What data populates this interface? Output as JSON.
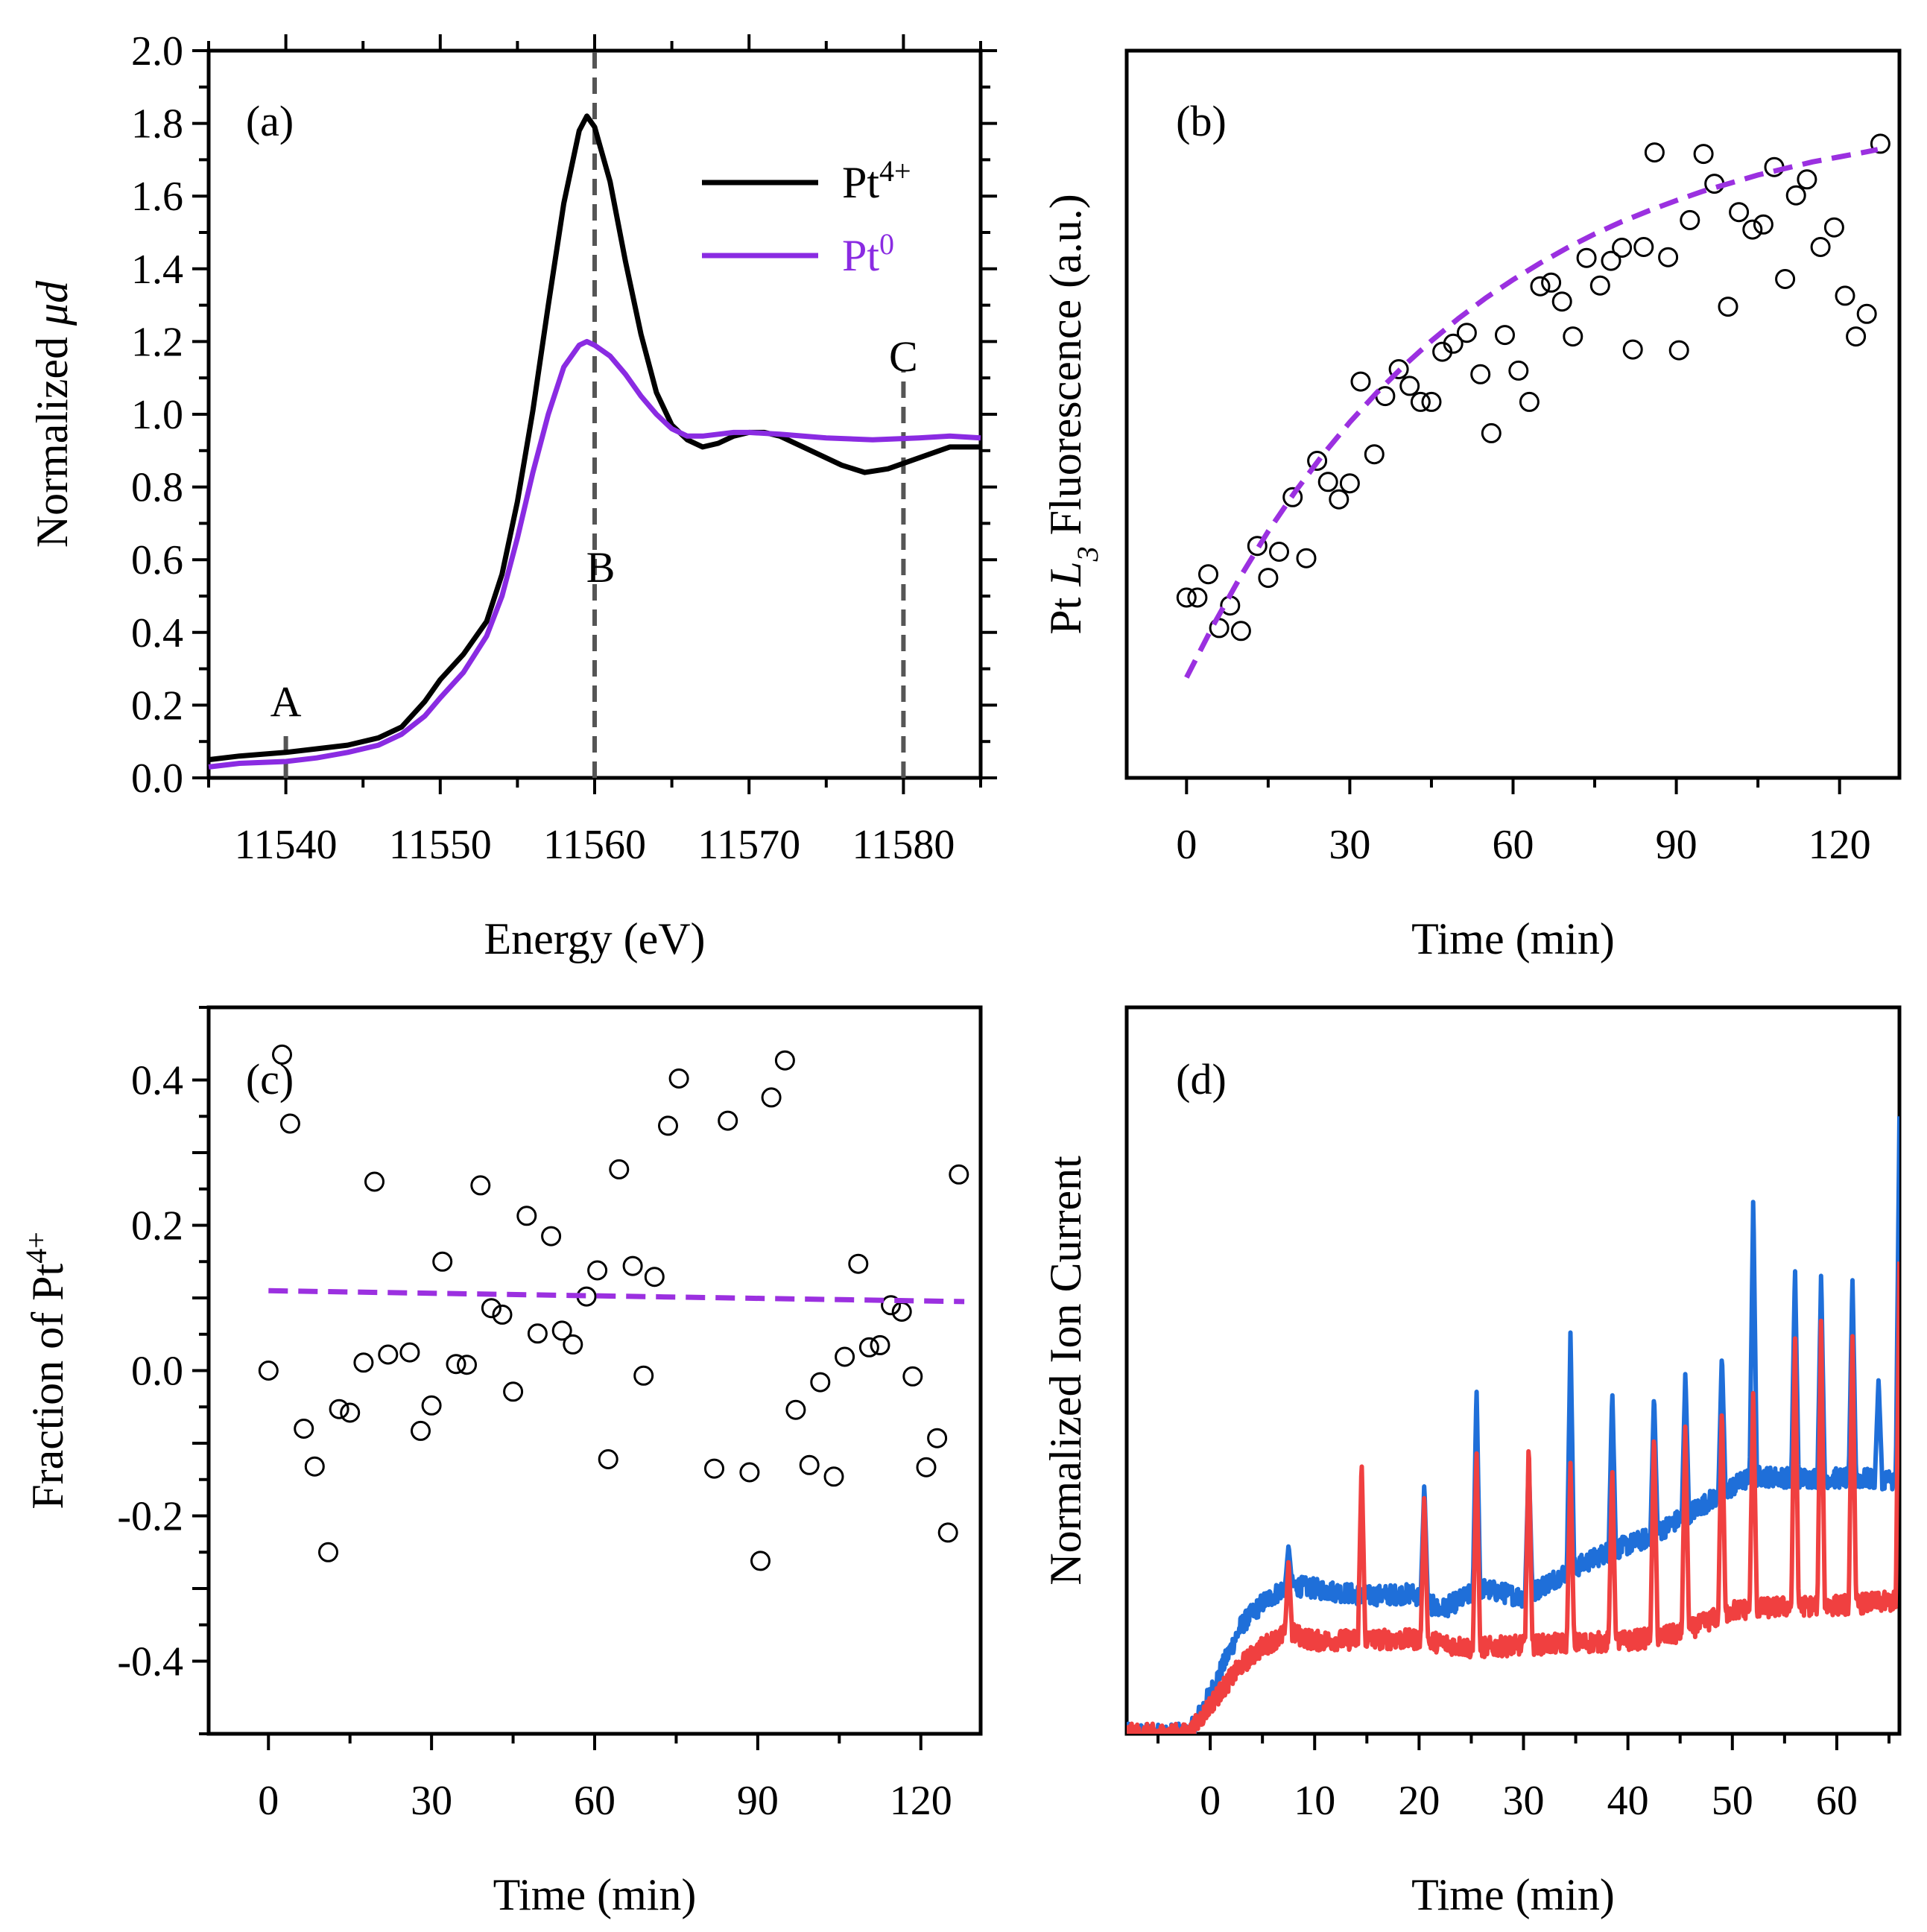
{
  "chart_data": [
    {
      "panel": "(a)",
      "type": "line",
      "xlabel": "Energy (eV)",
      "ylabel": "Normalized μd",
      "xlim": [
        11535,
        11585
      ],
      "ylim": [
        0.0,
        2.0
      ],
      "xticks": [
        11540,
        11550,
        11560,
        11570,
        11580
      ],
      "yticks": [
        0.0,
        0.2,
        0.4,
        0.6,
        0.8,
        1.0,
        1.2,
        1.4,
        1.6,
        1.8,
        2.0
      ],
      "ytick_labels": [
        "0.0",
        "0.2",
        "0.4",
        "0.6",
        "0.8",
        "1.0",
        "1.2",
        "1.4",
        "1.6",
        "1.8",
        "2.0"
      ],
      "legend": {
        "placement": "top-right",
        "entries": [
          {
            "base": "Pt",
            "sup": "4+",
            "color": "#000000"
          },
          {
            "base": "Pt",
            "sup": "0",
            "color": "#8a2be2"
          }
        ]
      },
      "series": [
        {
          "name": "Pt4+",
          "color": "#000000",
          "points": [
            [
              11535,
              0.05
            ],
            [
              11537,
              0.06
            ],
            [
              11540,
              0.07
            ],
            [
              11542,
              0.08
            ],
            [
              11544,
              0.09
            ],
            [
              11546,
              0.11
            ],
            [
              11547.5,
              0.14
            ],
            [
              11549,
              0.21
            ],
            [
              11550,
              0.27
            ],
            [
              11551.5,
              0.34
            ],
            [
              11553,
              0.43
            ],
            [
              11554,
              0.56
            ],
            [
              11555,
              0.76
            ],
            [
              11556,
              1.01
            ],
            [
              11557,
              1.3
            ],
            [
              11558,
              1.58
            ],
            [
              11559,
              1.78
            ],
            [
              11559.5,
              1.82
            ],
            [
              11560,
              1.79
            ],
            [
              11561,
              1.64
            ],
            [
              11562,
              1.42
            ],
            [
              11563,
              1.22
            ],
            [
              11564,
              1.06
            ],
            [
              11565,
              0.97
            ],
            [
              11566,
              0.93
            ],
            [
              11567,
              0.91
            ],
            [
              11568,
              0.92
            ],
            [
              11569,
              0.94
            ],
            [
              11570,
              0.95
            ],
            [
              11571,
              0.95
            ],
            [
              11572,
              0.94
            ],
            [
              11574,
              0.9
            ],
            [
              11576,
              0.86
            ],
            [
              11577.5,
              0.84
            ],
            [
              11579,
              0.85
            ],
            [
              11581,
              0.88
            ],
            [
              11583,
              0.91
            ],
            [
              11585,
              0.91
            ]
          ]
        },
        {
          "name": "Pt0",
          "color": "#8a2be2",
          "points": [
            [
              11535,
              0.03
            ],
            [
              11537,
              0.04
            ],
            [
              11540,
              0.045
            ],
            [
              11542,
              0.055
            ],
            [
              11544,
              0.07
            ],
            [
              11546,
              0.09
            ],
            [
              11547.5,
              0.12
            ],
            [
              11549,
              0.17
            ],
            [
              11550,
              0.22
            ],
            [
              11551.5,
              0.29
            ],
            [
              11553,
              0.39
            ],
            [
              11554,
              0.5
            ],
            [
              11555,
              0.66
            ],
            [
              11556,
              0.84
            ],
            [
              11557,
              1.0
            ],
            [
              11558,
              1.13
            ],
            [
              11559,
              1.19
            ],
            [
              11559.5,
              1.2
            ],
            [
              11560,
              1.19
            ],
            [
              11561,
              1.16
            ],
            [
              11562,
              1.11
            ],
            [
              11563,
              1.05
            ],
            [
              11564,
              1.0
            ],
            [
              11565,
              0.96
            ],
            [
              11566,
              0.94
            ],
            [
              11567,
              0.94
            ],
            [
              11568,
              0.945
            ],
            [
              11569,
              0.95
            ],
            [
              11570,
              0.95
            ],
            [
              11572,
              0.945
            ],
            [
              11575,
              0.935
            ],
            [
              11578,
              0.93
            ],
            [
              11581,
              0.935
            ],
            [
              11583,
              0.94
            ],
            [
              11585,
              0.935
            ]
          ]
        }
      ],
      "annotations": [
        {
          "label": "A",
          "x": 11540,
          "line_from": 0.0,
          "line_to": 0.12,
          "label_y": 0.21
        },
        {
          "label": "B",
          "x": 11560,
          "line_from": 0.0,
          "line_to": 2.0,
          "label_y": 0.58,
          "label_x_offset": 0.2
        },
        {
          "label": "C",
          "x": 11580,
          "line_from": 0.0,
          "line_to": 1.12,
          "label_y": 1.16
        }
      ]
    },
    {
      "panel": "(b)",
      "type": "scatter",
      "xlabel": "Time (min)",
      "ylabel": {
        "prefix": "Pt ",
        "italic": "L",
        "sub": "3",
        "suffix": " Fluorescence (a.u.)"
      },
      "xlim": [
        -11,
        131
      ],
      "ylim": [
        0,
        1
      ],
      "xticks": [
        0,
        30,
        60,
        90,
        120
      ],
      "yticks": [],
      "series": [
        {
          "name": "data",
          "style": "open-circle",
          "x": [
            0,
            2,
            4,
            6,
            8,
            10,
            13,
            15,
            17,
            19.5,
            22,
            24,
            26,
            28,
            30,
            32,
            34.5,
            36.5,
            39,
            41,
            43,
            45,
            47,
            49,
            51.5,
            54,
            56,
            58.5,
            61,
            63,
            65,
            67,
            69,
            71,
            73.5,
            76,
            78,
            80,
            82,
            84,
            86,
            88.5,
            90.5,
            92.5,
            95,
            97,
            99.5,
            101.5,
            104,
            106,
            108,
            110,
            112,
            114,
            116.5,
            119,
            121,
            123,
            125,
            127.5
          ],
          "y": [
            0.248,
            0.248,
            0.28,
            0.206,
            0.237,
            0.202,
            0.319,
            0.275,
            0.311,
            0.386,
            0.302,
            0.436,
            0.407,
            0.383,
            0.405,
            0.545,
            0.445,
            0.525,
            0.562,
            0.539,
            0.517,
            0.517,
            0.586,
            0.597,
            0.612,
            0.555,
            0.474,
            0.609,
            0.56,
            0.517,
            0.676,
            0.681,
            0.655,
            0.607,
            0.715,
            0.677,
            0.711,
            0.729,
            0.589,
            0.73,
            0.86,
            0.716,
            0.588,
            0.767,
            0.858,
            0.817,
            0.648,
            0.778,
            0.754,
            0.761,
            0.84,
            0.686,
            0.801,
            0.823,
            0.73,
            0.757,
            0.663,
            0.607,
            0.638,
            0.872
          ]
        },
        {
          "name": "fit",
          "style": "dashed",
          "color": "#9b30e0",
          "x": [
            0,
            5,
            10,
            15,
            20,
            25,
            30,
            35,
            40,
            45,
            50,
            55,
            60,
            65,
            70,
            75,
            80,
            85,
            90,
            95,
            100,
            105,
            110,
            115,
            120,
            125,
            127
          ],
          "y": [
            0.138,
            0.211,
            0.278,
            0.339,
            0.394,
            0.444,
            0.489,
            0.53,
            0.567,
            0.601,
            0.632,
            0.66,
            0.685,
            0.708,
            0.729,
            0.748,
            0.765,
            0.78,
            0.794,
            0.807,
            0.818,
            0.829,
            0.838,
            0.847,
            0.854,
            0.861,
            0.864
          ]
        }
      ]
    },
    {
      "panel": "(c)",
      "type": "scatter",
      "xlabel": "Time (min)",
      "ylabel": {
        "prefix": "Fraction of Pt",
        "sup": "4+"
      },
      "xlim": [
        -11,
        131
      ],
      "ylim": [
        -0.5,
        0.5
      ],
      "xticks": [
        0,
        30,
        60,
        90,
        120
      ],
      "yticks": [
        -0.4,
        -0.3,
        -0.2,
        -0.1,
        0.0,
        0.1,
        0.2,
        0.3,
        0.4
      ],
      "ytick_labels": [
        "-0.4",
        "",
        "-0.2",
        "",
        "0.0",
        "",
        "0.2",
        "",
        "0.4"
      ],
      "series": [
        {
          "name": "data",
          "style": "open-circle",
          "x": [
            0,
            2.5,
            4,
            6.5,
            8.5,
            11,
            13,
            15,
            17.5,
            19.5,
            22,
            26,
            28,
            30,
            32,
            34.5,
            36.5,
            39,
            41,
            43,
            45,
            47.5,
            49.5,
            52,
            54,
            56,
            58.5,
            60.5,
            62.5,
            64.5,
            67,
            69,
            71,
            73.5,
            75.5,
            82,
            84.5,
            88.5,
            90.5,
            92.5,
            95,
            97,
            99.5,
            101.5,
            104,
            106,
            108.5,
            110.5,
            112.5,
            114.5,
            116.5,
            118.5,
            121,
            123,
            125,
            127
          ],
          "y": [
            0.0,
            0.435,
            0.34,
            -0.08,
            -0.132,
            -0.25,
            -0.053,
            -0.058,
            0.011,
            0.26,
            0.022,
            0.025,
            -0.083,
            -0.048,
            0.15,
            0.009,
            0.008,
            0.255,
            0.086,
            0.077,
            -0.029,
            0.213,
            0.051,
            0.185,
            0.055,
            0.036,
            0.102,
            0.138,
            -0.122,
            0.277,
            0.144,
            -0.007,
            0.129,
            0.337,
            0.402,
            -0.135,
            0.344,
            -0.14,
            -0.262,
            0.376,
            0.427,
            -0.054,
            -0.13,
            -0.016,
            -0.146,
            0.019,
            0.147,
            0.032,
            0.035,
            0.09,
            0.081,
            -0.008,
            -0.133,
            -0.093,
            -0.223,
            0.27
          ]
        },
        {
          "name": "fit",
          "style": "dashed",
          "color": "#9b30e0",
          "x": [
            0,
            128
          ],
          "y": [
            0.11,
            0.095
          ]
        }
      ]
    },
    {
      "panel": "(d)",
      "type": "line",
      "xlabel": "Time (min)",
      "ylabel": "Normalized Ion Current",
      "xlim": [
        -8,
        66
      ],
      "ylim": [
        0,
        1
      ],
      "xticks": [
        0,
        10,
        20,
        30,
        40,
        50,
        60
      ],
      "yticks": [],
      "series": [
        {
          "name": "blue",
          "color": "#1f6fd9",
          "points": [
            [
              -8,
              0.0
            ],
            [
              -2,
              0.0
            ],
            [
              0,
              0.055
            ],
            [
              3,
              0.15
            ],
            [
              5,
              0.18
            ],
            [
              7.5,
              0.205
            ],
            [
              10,
              0.2
            ],
            [
              15,
              0.19
            ],
            [
              19.5,
              0.193
            ],
            [
              22,
              0.17
            ],
            [
              26,
              0.2
            ],
            [
              30,
              0.188
            ],
            [
              34,
              0.222
            ],
            [
              38,
              0.25
            ],
            [
              42,
              0.27
            ],
            [
              46,
              0.305
            ],
            [
              50,
              0.34
            ],
            [
              52,
              0.355
            ],
            [
              56,
              0.352
            ],
            [
              60,
              0.352
            ],
            [
              66,
              0.35
            ]
          ],
          "spikes": [
            [
              7.5,
              0.26
            ],
            [
              20.5,
              0.345
            ],
            [
              25.5,
              0.48
            ],
            [
              30.5,
              0.38
            ],
            [
              34.5,
              0.555
            ],
            [
              38.5,
              0.475
            ],
            [
              42.5,
              0.47
            ],
            [
              45.5,
              0.5
            ],
            [
              49,
              0.525
            ],
            [
              52,
              0.74
            ],
            [
              56,
              0.645
            ],
            [
              58.5,
              0.635
            ],
            [
              61.5,
              0.63
            ],
            [
              64,
              0.49
            ],
            [
              66,
              0.85
            ]
          ]
        },
        {
          "name": "red",
          "color": "#f04040",
          "points": [
            [
              -8,
              0.0
            ],
            [
              -2,
              0.0
            ],
            [
              0,
              0.04
            ],
            [
              3,
              0.095
            ],
            [
              5,
              0.12
            ],
            [
              7.5,
              0.14
            ],
            [
              10,
              0.128
            ],
            [
              15,
              0.13
            ],
            [
              20,
              0.13
            ],
            [
              25,
              0.118
            ],
            [
              30,
              0.122
            ],
            [
              35,
              0.125
            ],
            [
              40,
              0.128
            ],
            [
              45,
              0.138
            ],
            [
              50,
              0.17
            ],
            [
              55,
              0.175
            ],
            [
              60,
              0.177
            ],
            [
              66,
              0.183
            ]
          ],
          "spikes": [
            [
              7.5,
              0.24
            ],
            [
              14.5,
              0.38
            ],
            [
              20.5,
              0.33
            ],
            [
              25.5,
              0.395
            ],
            [
              30.5,
              0.405
            ],
            [
              34.5,
              0.375
            ],
            [
              38.5,
              0.37
            ],
            [
              42.5,
              0.42
            ],
            [
              45.5,
              0.43
            ],
            [
              49,
              0.455
            ],
            [
              52,
              0.475
            ],
            [
              56,
              0.555
            ],
            [
              58.5,
              0.575
            ],
            [
              61.5,
              0.555
            ],
            [
              66,
              0.65
            ]
          ]
        }
      ]
    }
  ]
}
